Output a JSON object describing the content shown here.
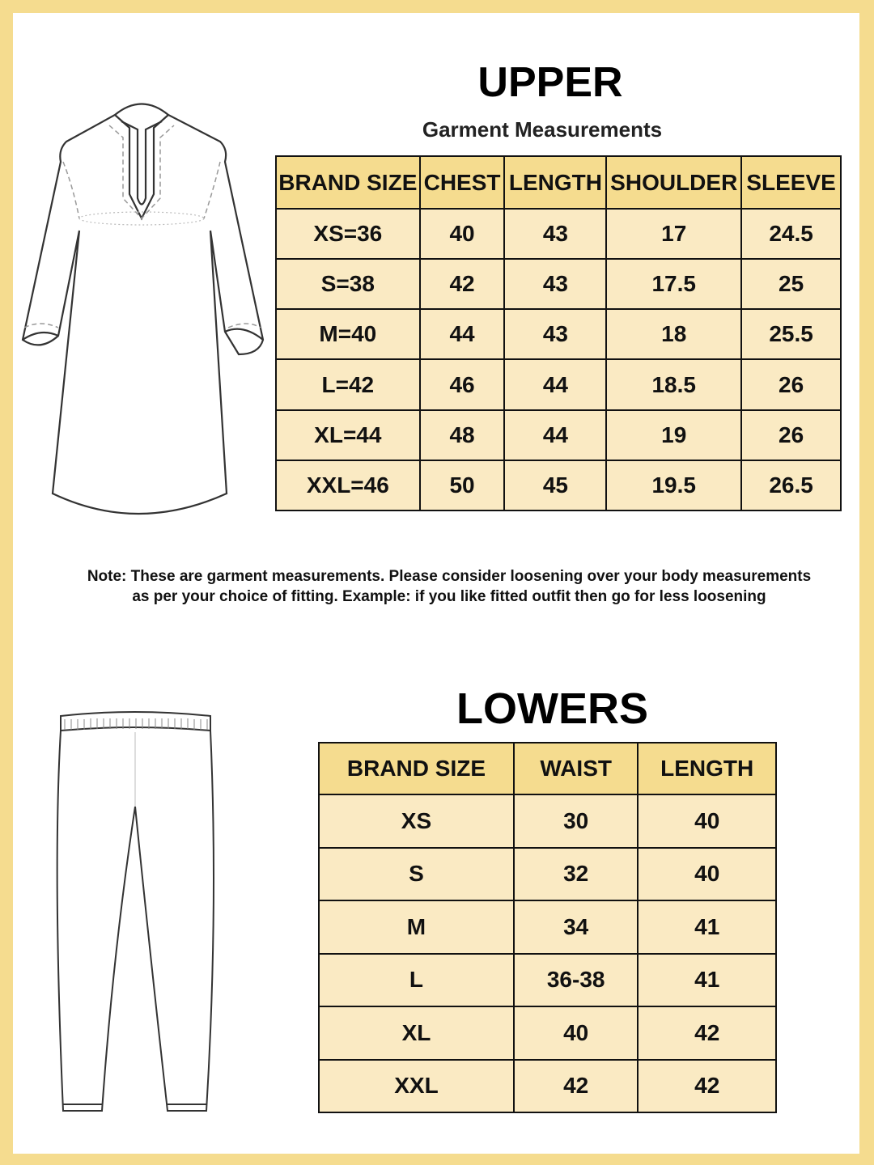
{
  "upper": {
    "title": "UPPER",
    "subtitle": "Garment Measurements",
    "headers": [
      "BRAND SIZE",
      "CHEST",
      "LENGTH",
      "SHOULDER",
      "SLEEVE"
    ],
    "rows": [
      [
        "XS=36",
        "40",
        "43",
        "17",
        "24.5"
      ],
      [
        "S=38",
        "42",
        "43",
        "17.5",
        "25"
      ],
      [
        "M=40",
        "44",
        "43",
        "18",
        "25.5"
      ],
      [
        "L=42",
        "46",
        "44",
        "18.5",
        "26"
      ],
      [
        "XL=44",
        "48",
        "44",
        "19",
        "26"
      ],
      [
        "XXL=46",
        "50",
        "45",
        "19.5",
        "26.5"
      ]
    ]
  },
  "note": {
    "line1": "Note: These are garment measurements. Please consider loosening over your body measurements",
    "line2": "as per your choice of fitting. Example: if you like fitted outfit then go for less loosening"
  },
  "lowers": {
    "title": "LOWERS",
    "headers": [
      "BRAND SIZE",
      "WAIST",
      "LENGTH"
    ],
    "rows": [
      [
        "XS",
        "30",
        "40"
      ],
      [
        "S",
        "32",
        "40"
      ],
      [
        "M",
        "34",
        "41"
      ],
      [
        "L",
        "36-38",
        "41"
      ],
      [
        "XL",
        "40",
        "42"
      ],
      [
        "XXL",
        "42",
        "42"
      ]
    ]
  },
  "colors": {
    "border": "#f5dc8f",
    "header_cell": "#f5dc8f",
    "body_cell": "#faeac3"
  },
  "icons": {
    "upper": "kurta-illustration",
    "lower": "pants-illustration"
  }
}
